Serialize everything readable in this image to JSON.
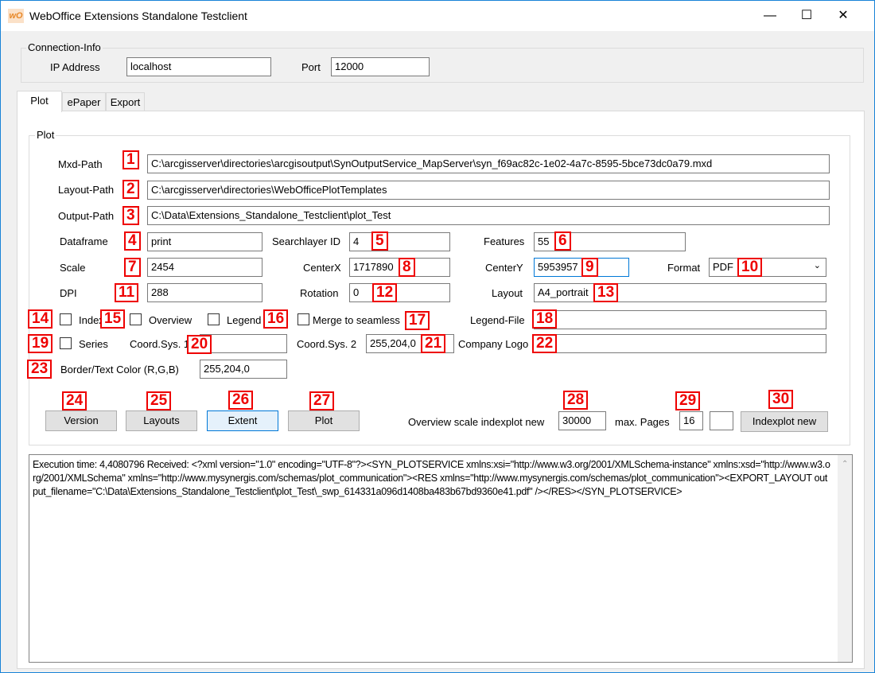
{
  "window": {
    "title": "WebOffice Extensions Standalone Testclient",
    "icon": "wo-logo",
    "minimize": "minimize-icon",
    "maximize": "maximize-icon",
    "close": "close-icon"
  },
  "connection": {
    "group_label": "Connection-Info",
    "ip_label": "IP Address",
    "ip_value": "localhost",
    "port_label": "Port",
    "port_value": "12000"
  },
  "tabs": [
    {
      "label": "Plot",
      "active": true
    },
    {
      "label": "ePaper"
    },
    {
      "label": "Export"
    }
  ],
  "plot": {
    "group_label": "Plot",
    "mxd_label": "Mxd-Path",
    "mxd_value": "C:\\arcgisserver\\directories\\arcgisoutput\\SynOutputService_MapServer\\syn_f69ac82c-1e02-4a7c-8595-5bce73dc0a79.mxd",
    "layoutpath_label": "Layout-Path",
    "layoutpath_value": "C:\\arcgisserver\\directories\\WebOfficePlotTemplates",
    "outputpath_label": "Output-Path",
    "outputpath_value": "C:\\Data\\Extensions_Standalone_Testclient\\plot_Test",
    "dataframe_label": "Dataframe",
    "dataframe_value": "print",
    "searchlayer_label": "Searchlayer ID",
    "searchlayer_value": "4",
    "features_label": "Features",
    "features_value": "55",
    "scale_label": "Scale",
    "scale_value": "2454",
    "centerx_label": "CenterX",
    "centerx_value": "1717890",
    "centery_label": "CenterY",
    "centery_value": "5953957",
    "format_label": "Format",
    "format_value": "PDF",
    "dpi_label": "DPI",
    "dpi_value": "288",
    "rotation_label": "Rotation",
    "rotation_value": "0",
    "layout_label": "Layout",
    "layout_value": "A4_portrait",
    "index_label": "Index",
    "overview_label": "Overview",
    "legend_label": "Legend",
    "merge_label": "Merge to seamless",
    "legendfile_label": "Legend-File",
    "legendfile_value": "",
    "series_label": "Series",
    "coordsys1_label": "Coord.Sys. 1",
    "coordsys1_value": "",
    "coordsys2_label": "Coord.Sys. 2",
    "coordsys2_value": "255,204,0",
    "companylogo_label": "Company Logo",
    "companylogo_value": "",
    "bordercolor_label": "Border/Text Color (R,G,B)",
    "bordercolor_value": "255,204,0",
    "buttons": {
      "version": "Version",
      "layouts": "Layouts",
      "extent": "Extent",
      "plot": "Plot",
      "indexplot": "Indexplot new"
    },
    "overview_scale_label": "Overview scale indexplot new",
    "overview_scale_value": "30000",
    "maxpages_label": "max. Pages",
    "maxpages_value": "16",
    "maxpages_extra_value": ""
  },
  "output": {
    "text": "Execution time: 4,4080796  Received: <?xml version=\"1.0\" encoding=\"UTF-8\"?><SYN_PLOTSERVICE xmlns:xsi=\"http://www.w3.org/2001/XMLSchema-instance\" xmlns:xsd=\"http://www.w3.org/2001/XMLSchema\" xmlns=\"http://www.mysynergis.com/schemas/plot_communication\"><RES xmlns=\"http://www.mysynergis.com/schemas/plot_communication\"><EXPORT_LAYOUT output_filename=\"C:\\Data\\Extensions_Standalone_Testclient\\plot_Test\\_swp_614331a096d1408ba483b67bd9360e41.pdf\" /></RES></SYN_PLOTSERVICE>"
  },
  "callouts": [
    "1",
    "2",
    "3",
    "4",
    "5",
    "6",
    "7",
    "8",
    "9",
    "10",
    "11",
    "12",
    "13",
    "14",
    "15",
    "16",
    "17",
    "18",
    "19",
    "20",
    "21",
    "22",
    "23",
    "24",
    "25",
    "26",
    "27",
    "28",
    "29",
    "30"
  ],
  "colors": {
    "callout": "#ee0000",
    "focus": "#0078d7"
  }
}
